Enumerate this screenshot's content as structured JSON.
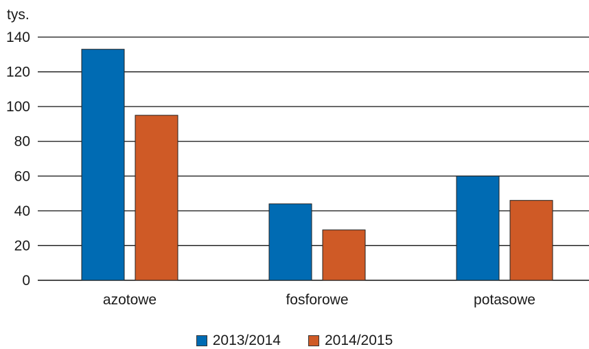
{
  "chart_data": {
    "type": "bar",
    "unit_label": "tys.",
    "categories": [
      "azotowe",
      "fosforowe",
      "potasowe"
    ],
    "series": [
      {
        "name": "2013/2014",
        "color": "#006bb3",
        "values": [
          133,
          44,
          60
        ]
      },
      {
        "name": "2014/2015",
        "color": "#cf5a26",
        "values": [
          95,
          29,
          46
        ]
      }
    ],
    "yticks": [
      0,
      20,
      40,
      60,
      80,
      100,
      120,
      140
    ],
    "ylim": [
      0,
      140
    ],
    "grid": true,
    "legend_position": "bottom-center"
  }
}
